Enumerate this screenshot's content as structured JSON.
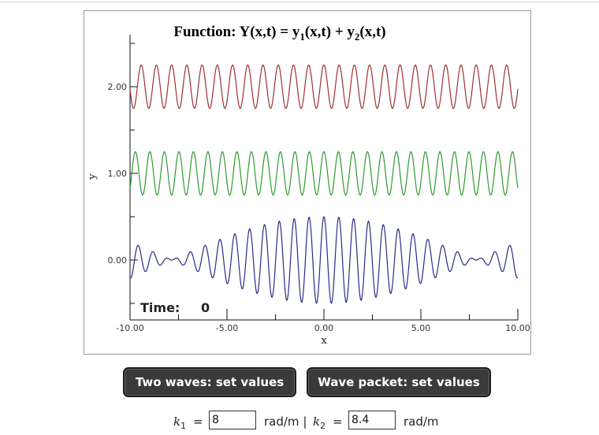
{
  "plot": {
    "title_prefix": "Function: Y(x,t) = y",
    "title_sub1": "1",
    "title_mid": "(x,t) + y",
    "title_sub2": "2",
    "title_suffix": "(x,t)",
    "time_label": "Time:",
    "time_value": "0"
  },
  "chart_data": {
    "type": "line",
    "xlabel": "x",
    "ylabel": "y",
    "xlim": [
      -10,
      10
    ],
    "x_ticks": [
      "-10.00",
      "-5.00",
      "0.00",
      "5.00",
      "10.00"
    ],
    "y_ticks": [
      "0.00",
      "1.00",
      "2.00"
    ],
    "series": [
      {
        "offset": 2.0,
        "amplitude": 0.25,
        "k": 8.0,
        "color": "#a03030"
      },
      {
        "offset": 1.0,
        "amplitude": 0.25,
        "k": 8.4,
        "color": "#2e9a2e"
      },
      {
        "offset": 0.0,
        "amplitude": 0.5,
        "k": [
          8.0,
          8.4
        ],
        "color": "#2a2a8a"
      }
    ]
  },
  "buttons": {
    "two_waves": "Two waves: set values",
    "wave_packet": "Wave packet: set values"
  },
  "inputs": {
    "k1_symbol": "k",
    "k1_sub": "1",
    "k1_value": "8",
    "unit1": "rad/m |",
    "k2_symbol": "k",
    "k2_sub": "2",
    "k2_value": "8.4",
    "unit2": "rad/m",
    "equals": "="
  }
}
